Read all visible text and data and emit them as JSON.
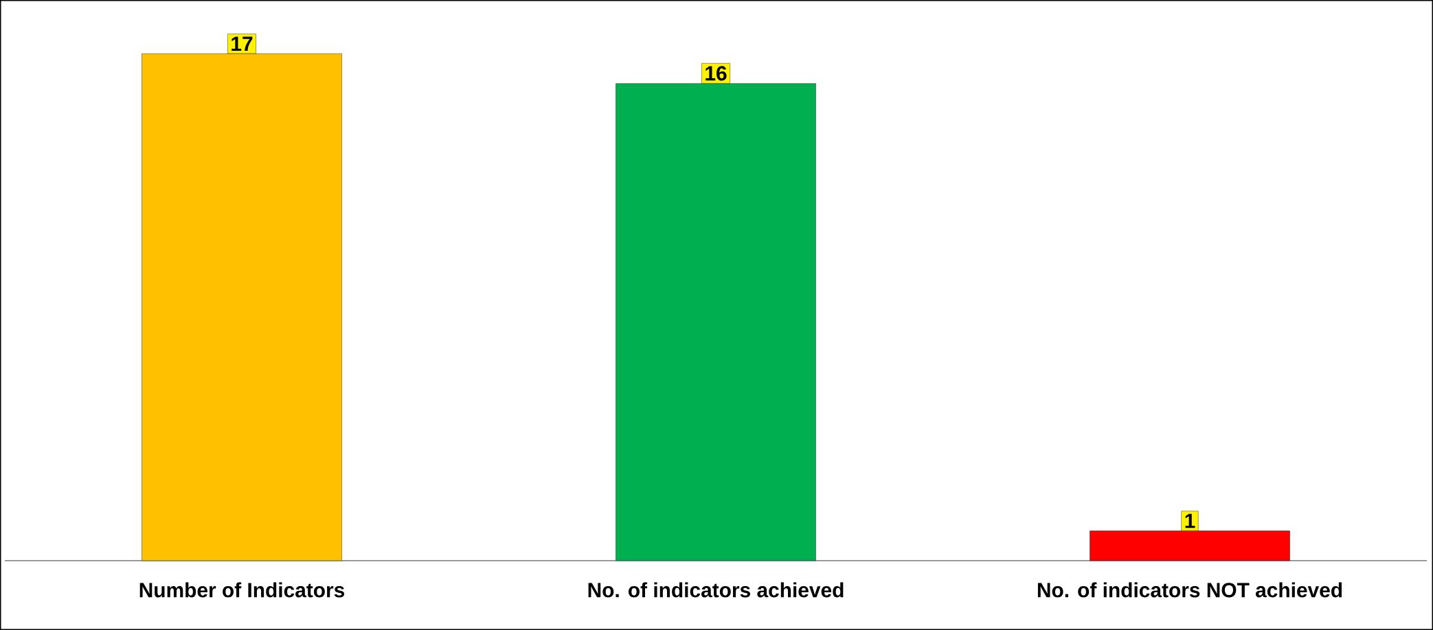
{
  "chart_data": {
    "type": "bar",
    "categories": [
      "Number of Indicators",
      "No. of indicators achieved",
      "No. of indicators NOT achieved"
    ],
    "values": [
      17,
      16,
      1
    ],
    "colors": [
      "#ffc000",
      "#00b050",
      "#ff0000"
    ],
    "data_labels": true
  }
}
